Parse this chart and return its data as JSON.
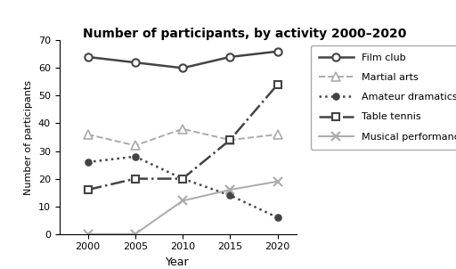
{
  "title": "Number of participants, by activity 2000–2020",
  "xlabel": "Year",
  "ylabel": "Number of participants",
  "years": [
    2000,
    2005,
    2010,
    2015,
    2020
  ],
  "series": {
    "Film club": [
      64,
      62,
      60,
      64,
      66
    ],
    "Martial arts": [
      36,
      32,
      38,
      34,
      36
    ],
    "Amateur dramatics": [
      26,
      28,
      20,
      14,
      6
    ],
    "Table tennis": [
      16,
      20,
      20,
      34,
      54
    ],
    "Musical performances": [
      0,
      0,
      12,
      16,
      19
    ]
  },
  "styles": {
    "Film club": {
      "color": "#444444",
      "linestyle": "-",
      "marker": "o",
      "markersize": 6,
      "linewidth": 1.8,
      "markerfacecolor": "white",
      "markeredgewidth": 1.5
    },
    "Martial arts": {
      "color": "#aaaaaa",
      "linestyle": "--",
      "marker": "^",
      "markersize": 7,
      "linewidth": 1.4,
      "markerfacecolor": "white",
      "markeredgewidth": 1.2
    },
    "Amateur dramatics": {
      "color": "#444444",
      "linestyle": ":",
      "marker": "o",
      "markersize": 5,
      "linewidth": 1.8,
      "markerfacecolor": "#444444",
      "markeredgewidth": 1.2
    },
    "Table tennis": {
      "color": "#444444",
      "linestyle": "-.",
      "marker": "s",
      "markersize": 6,
      "linewidth": 1.8,
      "markerfacecolor": "white",
      "markeredgewidth": 1.5
    },
    "Musical performances": {
      "color": "#aaaaaa",
      "linestyle": "-",
      "marker": "x",
      "markersize": 7,
      "linewidth": 1.4,
      "markerfacecolor": "#aaaaaa",
      "markeredgewidth": 1.5
    }
  },
  "ylim": [
    0,
    70
  ],
  "yticks": [
    0,
    10,
    20,
    30,
    40,
    50,
    60,
    70
  ],
  "background_color": "#ffffff"
}
